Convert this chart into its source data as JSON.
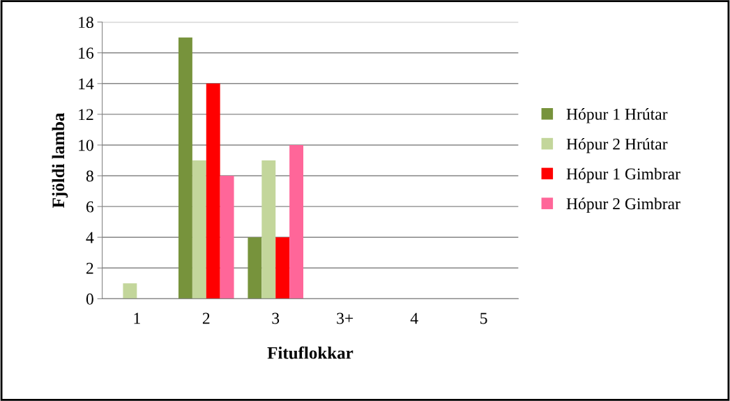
{
  "chart_data": {
    "type": "bar",
    "xlabel": "Fituflokkar",
    "ylabel": "Fjöldi lamba",
    "categories": [
      "1",
      "2",
      "3",
      "3+",
      "4",
      "5"
    ],
    "series": [
      {
        "name": "Hópur 1 Hrútar",
        "color": "#77933c",
        "values": [
          0,
          17,
          4,
          0,
          0,
          0
        ]
      },
      {
        "name": "Hópur 2 Hrútar",
        "color": "#c3d69b",
        "values": [
          1,
          9,
          9,
          0,
          0,
          0
        ]
      },
      {
        "name": "Hópur 1 Gimbrar",
        "color": "#ff0000",
        "values": [
          0,
          14,
          4,
          0,
          0,
          0
        ]
      },
      {
        "name": "Hópur 2 Gimbrar",
        "color": "#ff6699",
        "values": [
          0,
          8,
          10,
          0,
          0,
          0
        ]
      }
    ],
    "ylim": [
      0,
      18
    ],
    "yticks": [
      0,
      2,
      4,
      6,
      8,
      10,
      12,
      14,
      16,
      18
    ],
    "grid": "y",
    "legend": "right"
  }
}
